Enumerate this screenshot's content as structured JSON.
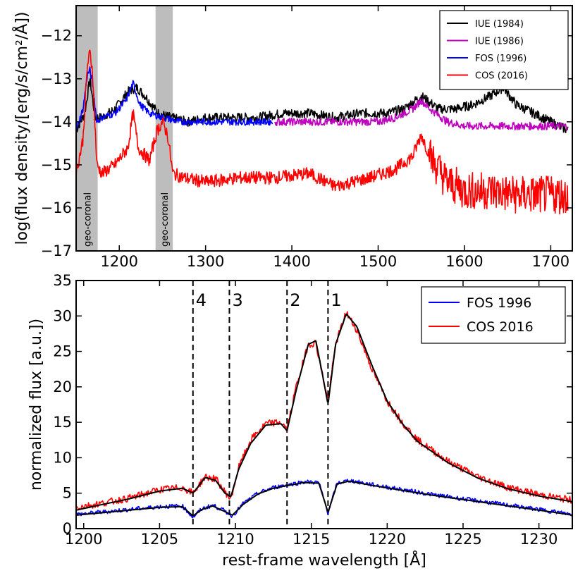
{
  "chart_data": [
    {
      "type": "line",
      "ylabel": "log(flux density/[erg/s/cm²/Å])",
      "xlim": [
        1150,
        1725
      ],
      "ylim": [
        -17,
        -11.3
      ],
      "xticks": [
        "1200",
        "1300",
        "1400",
        "1500",
        "1600",
        "1700"
      ],
      "xtick_values": [
        1200,
        1300,
        1400,
        1500,
        1600,
        1700
      ],
      "yticks": [
        "−12",
        "−13",
        "−14",
        "−15",
        "−16",
        "−17"
      ],
      "ytick_values": [
        -12,
        -13,
        -14,
        -15,
        -16,
        -17
      ],
      "shaded_bands": [
        {
          "label": "geo-coronal",
          "x0": 1150,
          "x1": 1175
        },
        {
          "label": "geo-coronal",
          "x0": 1242,
          "x1": 1262
        }
      ],
      "legend_position": "top-right",
      "series": [
        {
          "name": "IUE (1984)",
          "color": "#000000",
          "x": [
            1150,
            1160,
            1166,
            1172,
            1180,
            1195,
            1210,
            1220,
            1230,
            1245,
            1260,
            1280,
            1300,
            1330,
            1360,
            1390,
            1420,
            1450,
            1480,
            1510,
            1530,
            1550,
            1570,
            1590,
            1610,
            1630,
            1645,
            1660,
            1680,
            1700,
            1720
          ],
          "y": [
            -14.2,
            -13.8,
            -13.0,
            -13.9,
            -13.9,
            -13.7,
            -13.3,
            -13.2,
            -13.4,
            -13.8,
            -13.9,
            -14.0,
            -13.9,
            -13.9,
            -13.9,
            -13.8,
            -13.8,
            -13.9,
            -13.8,
            -13.8,
            -13.7,
            -13.4,
            -13.7,
            -13.7,
            -13.6,
            -13.4,
            -13.2,
            -13.6,
            -13.8,
            -14.0,
            -14.2
          ]
        },
        {
          "name": "IUE (1986)",
          "color": "#bf00bf",
          "x": [
            1380,
            1400,
            1420,
            1440,
            1460,
            1480,
            1500,
            1520,
            1540,
            1550,
            1560,
            1580,
            1600,
            1620,
            1640,
            1660,
            1680,
            1700,
            1720
          ],
          "y": [
            -14.0,
            -14.0,
            -14.0,
            -14.0,
            -14.0,
            -14.0,
            -14.0,
            -13.9,
            -13.7,
            -13.5,
            -13.7,
            -14.0,
            -14.1,
            -14.1,
            -14.1,
            -14.1,
            -14.1,
            -14.1,
            -14.1
          ]
        },
        {
          "name": "FOS (1996)",
          "color": "#0000ff",
          "x": [
            1150,
            1158,
            1163,
            1166,
            1169,
            1174,
            1180,
            1195,
            1208,
            1216,
            1224,
            1235,
            1250,
            1270,
            1300,
            1330,
            1360,
            1378
          ],
          "y": [
            -14.2,
            -13.7,
            -12.9,
            -12.8,
            -13.1,
            -14.0,
            -13.9,
            -13.8,
            -13.5,
            -13.1,
            -13.6,
            -13.8,
            -13.9,
            -14.0,
            -14.0,
            -14.0,
            -14.0,
            -14.0
          ]
        },
        {
          "name": "COS (2016)",
          "color": "#ff0000",
          "x": [
            1150,
            1158,
            1163,
            1166,
            1169,
            1174,
            1180,
            1195,
            1210,
            1216,
            1222,
            1235,
            1244,
            1250,
            1256,
            1262,
            1275,
            1300,
            1340,
            1380,
            1420,
            1450,
            1490,
            1520,
            1540,
            1550,
            1560,
            1580,
            1600,
            1630,
            1660,
            1690,
            1720
          ],
          "y": [
            -15.2,
            -14.4,
            -12.7,
            -12.4,
            -12.8,
            -15.0,
            -15.2,
            -15.0,
            -14.6,
            -13.8,
            -14.6,
            -14.9,
            -14.2,
            -14.0,
            -14.3,
            -15.2,
            -15.3,
            -15.4,
            -15.3,
            -15.3,
            -15.2,
            -15.5,
            -15.3,
            -15.1,
            -14.8,
            -14.3,
            -14.8,
            -15.4,
            -15.6,
            -15.6,
            -15.7,
            -15.7,
            -15.7
          ]
        }
      ]
    },
    {
      "type": "line",
      "xlabel": "rest-frame wavelength [Å]",
      "ylabel": "normalized flux [a.u.])",
      "xlim": [
        1199.5,
        1232.2
      ],
      "ylim": [
        0,
        35
      ],
      "xticks": [
        "1200",
        "1205",
        "1210",
        "1215",
        "1220",
        "1225",
        "1230"
      ],
      "xtick_values": [
        1200,
        1205,
        1210,
        1215,
        1220,
        1225,
        1230
      ],
      "yticks": [
        "0",
        "5",
        "10",
        "15",
        "20",
        "25",
        "30",
        "35"
      ],
      "ytick_values": [
        0,
        5,
        10,
        15,
        20,
        25,
        30,
        35
      ],
      "legend_position": "top-right",
      "vlines": [
        {
          "label": "4",
          "x": 1207.2
        },
        {
          "label": "3",
          "x": 1209.6
        },
        {
          "label": "2",
          "x": 1213.4
        },
        {
          "label": "1",
          "x": 1216.1
        }
      ],
      "series": [
        {
          "name": "FOS 1996",
          "color": "#0000ff",
          "x": [
            1199.5,
            1201,
            1203,
            1205,
            1206.5,
            1207.2,
            1207.8,
            1208.5,
            1209.2,
            1209.8,
            1210.5,
            1211.5,
            1212.5,
            1213.5,
            1214.5,
            1215.5,
            1216.1,
            1216.7,
            1217.5,
            1219,
            1221,
            1223,
            1225,
            1227,
            1229,
            1231,
            1232.2
          ],
          "x_note": "data units",
          "y": [
            2.0,
            2.3,
            2.7,
            3.1,
            3.2,
            1.6,
            2.8,
            3.3,
            2.6,
            1.8,
            3.5,
            5.0,
            5.8,
            6.2,
            6.6,
            6.5,
            2.2,
            6.4,
            6.8,
            6.2,
            5.5,
            4.8,
            4.2,
            3.6,
            3.0,
            2.4,
            2.0
          ]
        },
        {
          "name": "COS 2016",
          "color": "#ff0000",
          "x": [
            1199.5,
            1201,
            1203,
            1205,
            1206.5,
            1207.2,
            1208,
            1208.7,
            1209.3,
            1209.7,
            1210.2,
            1211,
            1212,
            1213,
            1213.4,
            1214,
            1214.8,
            1215.3,
            1215.8,
            1216.1,
            1216.6,
            1217.3,
            1218,
            1219,
            1220,
            1221,
            1222,
            1224,
            1226,
            1228,
            1230,
            1232.2
          ],
          "y": [
            3.0,
            3.5,
            4.3,
            5.5,
            5.8,
            5.0,
            7.3,
            7.0,
            5.2,
            4.2,
            8.5,
            12.5,
            14.8,
            15.0,
            14.0,
            20.0,
            26.0,
            26.2,
            21.0,
            18.0,
            26.0,
            30.5,
            28.0,
            22.5,
            18.0,
            15.0,
            12.5,
            9.5,
            7.3,
            5.8,
            4.8,
            4.0
          ]
        },
        {
          "name": "fit",
          "color": "#000000",
          "legend": false,
          "x": [
            1199.5,
            1201,
            1203,
            1205,
            1206.5,
            1207.2,
            1208,
            1208.7,
            1209.3,
            1209.7,
            1210.2,
            1211,
            1212,
            1213,
            1213.4,
            1214,
            1214.8,
            1215.3,
            1215.8,
            1216.1,
            1216.6,
            1217.3,
            1218,
            1219,
            1220,
            1221,
            1222,
            1224,
            1226,
            1228,
            1230,
            1232.2
          ],
          "y": [
            2.6,
            3.3,
            4.2,
            5.3,
            5.7,
            5.0,
            7.2,
            6.8,
            5.0,
            4.5,
            8.3,
            12.0,
            14.6,
            14.8,
            13.8,
            19.5,
            26.0,
            26.5,
            21.0,
            17.5,
            26.0,
            30.3,
            28.5,
            23.0,
            18.0,
            14.8,
            12.3,
            9.3,
            7.1,
            5.6,
            4.6,
            3.8
          ]
        },
        {
          "name": "fit",
          "color": "#000000",
          "legend": false,
          "x": [
            1199.5,
            1201,
            1203,
            1205,
            1206.5,
            1207.2,
            1207.8,
            1208.5,
            1209.2,
            1209.8,
            1210.5,
            1211.5,
            1212.5,
            1213.5,
            1214.5,
            1215.5,
            1216.1,
            1216.7,
            1217.5,
            1219,
            1221,
            1223,
            1225,
            1227,
            1229,
            1231,
            1232.2
          ],
          "y": [
            1.9,
            2.2,
            2.6,
            3.0,
            3.1,
            1.8,
            2.7,
            3.2,
            2.5,
            1.9,
            3.4,
            4.9,
            5.7,
            6.1,
            6.5,
            6.4,
            2.3,
            6.3,
            6.7,
            6.1,
            5.4,
            4.7,
            4.1,
            3.5,
            2.9,
            2.3,
            1.9
          ]
        }
      ]
    }
  ]
}
